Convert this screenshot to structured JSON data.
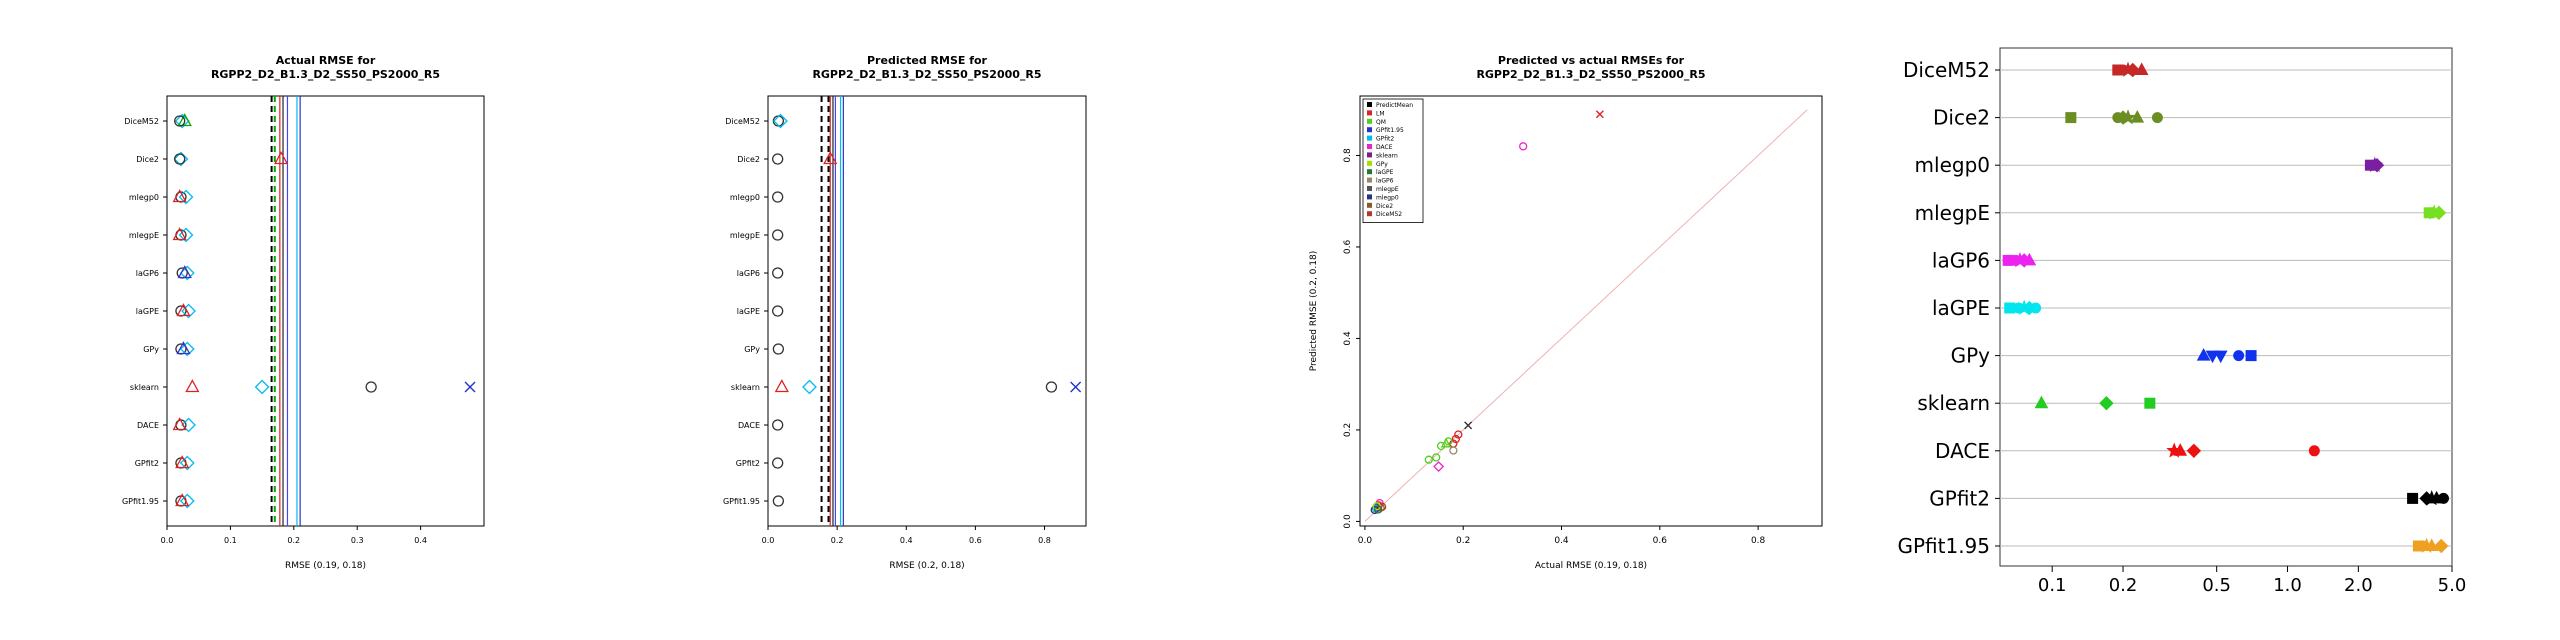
{
  "chart_data": [
    {
      "type": "scatter",
      "title": "Actual RMSE for",
      "subtitle": "RGPP2_D2_B1.3_D2_SS50_PS2000_R5",
      "xlabel": "RMSE (0.19, 0.18)",
      "ylabel": "",
      "xlim": [
        0,
        0.5
      ],
      "xticks": [
        "0.0",
        "0.1",
        "0.2",
        "0.3",
        "0.4"
      ],
      "xtick_values": [
        0,
        0.1,
        0.2,
        0.3,
        0.4
      ],
      "categories": [
        "DiceM52",
        "Dice2",
        "mlegp0",
        "mlegpE",
        "laGP6",
        "laGPE",
        "GPy",
        "sklearn",
        "DACE",
        "GPfit2",
        "GPfit1.95"
      ],
      "vlines": [
        {
          "x": 0.165,
          "color": "#000000",
          "dash": true
        },
        {
          "x": 0.17,
          "color": "#00aa00",
          "dash": true
        },
        {
          "x": 0.178,
          "color": "#dd2222",
          "dash": false
        },
        {
          "x": 0.183,
          "color": "#222222",
          "dash": false
        },
        {
          "x": 0.19,
          "color": "#4444ff",
          "dash": false
        },
        {
          "x": 0.205,
          "color": "#00bbee",
          "dash": false
        },
        {
          "x": 0.21,
          "color": "#2233cc",
          "dash": false
        }
      ],
      "points": [
        {
          "cat": "DiceM52",
          "x": 0.024,
          "marker": "diamond",
          "color": "#00bbee"
        },
        {
          "cat": "DiceM52",
          "x": 0.028,
          "marker": "triangle",
          "color": "#00aa00"
        },
        {
          "cat": "DiceM52",
          "x": 0.02,
          "marker": "circle",
          "color": "#333333"
        },
        {
          "cat": "Dice2",
          "x": 0.18,
          "marker": "triangle",
          "color": "#dd2222"
        },
        {
          "cat": "Dice2",
          "x": 0.022,
          "marker": "diamond",
          "color": "#00bbee"
        },
        {
          "cat": "Dice2",
          "x": 0.02,
          "marker": "circle",
          "color": "#333333"
        },
        {
          "cat": "mlegp0",
          "x": 0.022,
          "marker": "circle",
          "color": "#333333"
        },
        {
          "cat": "mlegp0",
          "x": 0.03,
          "marker": "diamond",
          "color": "#00bbee"
        },
        {
          "cat": "mlegp0",
          "x": 0.02,
          "marker": "triangle",
          "color": "#dd2222"
        },
        {
          "cat": "mlegpE",
          "x": 0.022,
          "marker": "circle",
          "color": "#333333"
        },
        {
          "cat": "mlegpE",
          "x": 0.03,
          "marker": "diamond",
          "color": "#00bbee"
        },
        {
          "cat": "mlegpE",
          "x": 0.02,
          "marker": "triangle",
          "color": "#dd2222"
        },
        {
          "cat": "laGP6",
          "x": 0.024,
          "marker": "circle",
          "color": "#333333"
        },
        {
          "cat": "laGP6",
          "x": 0.032,
          "marker": "diamond",
          "color": "#00bbee"
        },
        {
          "cat": "laGP6",
          "x": 0.028,
          "marker": "triangle",
          "color": "#3333cc"
        },
        {
          "cat": "laGPE",
          "x": 0.022,
          "marker": "circle",
          "color": "#333333"
        },
        {
          "cat": "laGPE",
          "x": 0.034,
          "marker": "diamond",
          "color": "#00bbee"
        },
        {
          "cat": "laGPE",
          "x": 0.026,
          "marker": "triangle",
          "color": "#dd2222"
        },
        {
          "cat": "GPy",
          "x": 0.022,
          "marker": "circle",
          "color": "#333333"
        },
        {
          "cat": "GPy",
          "x": 0.032,
          "marker": "diamond",
          "color": "#00bbee"
        },
        {
          "cat": "GPy",
          "x": 0.026,
          "marker": "triangle",
          "color": "#3333cc"
        },
        {
          "cat": "sklearn",
          "x": 0.04,
          "marker": "triangle",
          "color": "#dd2222"
        },
        {
          "cat": "sklearn",
          "x": 0.15,
          "marker": "diamond",
          "color": "#00bbee"
        },
        {
          "cat": "sklearn",
          "x": 0.322,
          "marker": "circle",
          "color": "#333333"
        },
        {
          "cat": "sklearn",
          "x": 0.478,
          "marker": "x",
          "color": "#2233cc"
        },
        {
          "cat": "DACE",
          "x": 0.022,
          "marker": "circle",
          "color": "#333333"
        },
        {
          "cat": "DACE",
          "x": 0.034,
          "marker": "diamond",
          "color": "#00bbee"
        },
        {
          "cat": "DACE",
          "x": 0.02,
          "marker": "triangle",
          "color": "#dd2222"
        },
        {
          "cat": "GPfit2",
          "x": 0.022,
          "marker": "circle",
          "color": "#333333"
        },
        {
          "cat": "GPfit2",
          "x": 0.032,
          "marker": "diamond",
          "color": "#00bbee"
        },
        {
          "cat": "GPfit2",
          "x": 0.024,
          "marker": "triangle",
          "color": "#dd2222"
        },
        {
          "cat": "GPfit1.95",
          "x": 0.022,
          "marker": "circle",
          "color": "#333333"
        },
        {
          "cat": "GPfit1.95",
          "x": 0.032,
          "marker": "diamond",
          "color": "#00bbee"
        },
        {
          "cat": "GPfit1.95",
          "x": 0.024,
          "marker": "triangle",
          "color": "#dd2222"
        }
      ]
    },
    {
      "type": "scatter",
      "title": "Predicted RMSE for",
      "subtitle": "RGPP2_D2_B1.3_D2_SS50_PS2000_R5",
      "xlabel": "RMSE (0.2, 0.18)",
      "ylabel": "",
      "xlim": [
        0,
        0.92
      ],
      "xticks": [
        "0.0",
        "0.2",
        "0.4",
        "0.6",
        "0.8"
      ],
      "xtick_values": [
        0,
        0.2,
        0.4,
        0.6,
        0.8
      ],
      "categories": [
        "DiceM52",
        "Dice2",
        "mlegp0",
        "mlegpE",
        "laGP6",
        "laGPE",
        "GPy",
        "sklearn",
        "DACE",
        "GPfit2",
        "GPfit1.95"
      ],
      "vlines": [
        {
          "x": 0.155,
          "color": "#000000",
          "dash": true
        },
        {
          "x": 0.175,
          "color": "#000000",
          "dash": true
        },
        {
          "x": 0.18,
          "color": "#dd2222",
          "dash": false
        },
        {
          "x": 0.188,
          "color": "#222222",
          "dash": false
        },
        {
          "x": 0.195,
          "color": "#4444ff",
          "dash": false
        },
        {
          "x": 0.21,
          "color": "#00bbee",
          "dash": false
        },
        {
          "x": 0.218,
          "color": "#2233cc",
          "dash": false
        }
      ],
      "points": [
        {
          "cat": "DiceM52",
          "x": 0.03,
          "marker": "circle",
          "color": "#333333"
        },
        {
          "cat": "DiceM52",
          "x": 0.036,
          "marker": "diamond",
          "color": "#00bbee"
        },
        {
          "cat": "Dice2",
          "x": 0.028,
          "marker": "circle",
          "color": "#333333"
        },
        {
          "cat": "Dice2",
          "x": 0.18,
          "marker": "triangle",
          "color": "#dd2222"
        },
        {
          "cat": "mlegp0",
          "x": 0.028,
          "marker": "circle",
          "color": "#333333"
        },
        {
          "cat": "mlegpE",
          "x": 0.028,
          "marker": "circle",
          "color": "#333333"
        },
        {
          "cat": "laGP6",
          "x": 0.028,
          "marker": "circle",
          "color": "#333333"
        },
        {
          "cat": "laGPE",
          "x": 0.028,
          "marker": "circle",
          "color": "#333333"
        },
        {
          "cat": "GPy",
          "x": 0.03,
          "marker": "circle",
          "color": "#333333"
        },
        {
          "cat": "sklearn",
          "x": 0.04,
          "marker": "triangle",
          "color": "#dd2222"
        },
        {
          "cat": "sklearn",
          "x": 0.12,
          "marker": "diamond",
          "color": "#00bbee"
        },
        {
          "cat": "sklearn",
          "x": 0.82,
          "marker": "circle",
          "color": "#333333"
        },
        {
          "cat": "sklearn",
          "x": 0.89,
          "marker": "x",
          "color": "#2233cc"
        },
        {
          "cat": "DACE",
          "x": 0.028,
          "marker": "circle",
          "color": "#333333"
        },
        {
          "cat": "GPfit2",
          "x": 0.028,
          "marker": "circle",
          "color": "#333333"
        },
        {
          "cat": "GPfit1.95",
          "x": 0.03,
          "marker": "circle",
          "color": "#333333"
        }
      ]
    },
    {
      "type": "scatter",
      "title": "Predicted vs actual RMSEs for",
      "subtitle": "RGPP2_D2_B1.3_D2_SS50_PS2000_R5",
      "xlabel": "Actual RMSE (0.19, 0.18)",
      "ylabel": "Predicted RMSE (0.2, 0.18)",
      "xlim": [
        -0.01,
        0.93
      ],
      "ylim": [
        -0.01,
        0.93
      ],
      "xticks": [
        "0.0",
        "0.2",
        "0.4",
        "0.6",
        "0.8"
      ],
      "yticks": [
        "0.0",
        "0.2",
        "0.4",
        "0.6",
        "0.8"
      ],
      "tick_values": [
        0,
        0.2,
        0.4,
        0.6,
        0.8
      ],
      "diagonal": true,
      "legend_position": "top-left",
      "legend": [
        {
          "label": "PredictMean",
          "color": "#000000"
        },
        {
          "label": "LM",
          "color": "#dd2222"
        },
        {
          "label": "QM",
          "color": "#55cc22"
        },
        {
          "label": "GPfit1.95",
          "color": "#2233cc"
        },
        {
          "label": "GPfit2",
          "color": "#00bbee"
        },
        {
          "label": "DACE",
          "color": "#ee22cc"
        },
        {
          "label": "sklearn",
          "color": "#7a1e8c"
        },
        {
          "label": "GPy",
          "color": "#aadd00"
        },
        {
          "label": "laGPE",
          "color": "#1f7a3a"
        },
        {
          "label": "laGP6",
          "color": "#998866"
        },
        {
          "label": "mlegpE",
          "color": "#555555"
        },
        {
          "label": "mlegp0",
          "color": "#223388"
        },
        {
          "label": "Dice2",
          "color": "#8b5a2b"
        },
        {
          "label": "DiceM52",
          "color": "#b33a2a"
        }
      ],
      "points": [
        {
          "x": 0.478,
          "y": 0.89,
          "marker": "x",
          "color": "#dd2222"
        },
        {
          "x": 0.322,
          "y": 0.82,
          "marker": "circle",
          "color": "#ee22cc"
        },
        {
          "x": 0.21,
          "y": 0.21,
          "marker": "x",
          "color": "#333333"
        },
        {
          "x": 0.19,
          "y": 0.19,
          "marker": "circle",
          "color": "#dd2222"
        },
        {
          "x": 0.185,
          "y": 0.18,
          "marker": "circle",
          "color": "#dd2222"
        },
        {
          "x": 0.18,
          "y": 0.17,
          "marker": "circle",
          "color": "#dd2222"
        },
        {
          "x": 0.17,
          "y": 0.175,
          "marker": "circle",
          "color": "#55cc22"
        },
        {
          "x": 0.165,
          "y": 0.17,
          "marker": "triangle",
          "color": "#55cc22"
        },
        {
          "x": 0.155,
          "y": 0.165,
          "marker": "circle",
          "color": "#55cc22"
        },
        {
          "x": 0.15,
          "y": 0.12,
          "marker": "diamond",
          "color": "#ee22cc"
        },
        {
          "x": 0.145,
          "y": 0.14,
          "marker": "circle",
          "color": "#55cc22"
        },
        {
          "x": 0.13,
          "y": 0.135,
          "marker": "circle",
          "color": "#55cc22"
        },
        {
          "x": 0.18,
          "y": 0.155,
          "marker": "circle",
          "color": "#998866"
        },
        {
          "x": 0.03,
          "y": 0.04,
          "marker": "circle",
          "color": "#ee22cc"
        },
        {
          "x": 0.028,
          "y": 0.035,
          "marker": "circle",
          "color": "#dd2222"
        },
        {
          "x": 0.025,
          "y": 0.03,
          "marker": "circle",
          "color": "#2233cc"
        },
        {
          "x": 0.022,
          "y": 0.028,
          "marker": "circle",
          "color": "#00bbee"
        },
        {
          "x": 0.032,
          "y": 0.03,
          "marker": "circle",
          "color": "#8b5a2b"
        },
        {
          "x": 0.02,
          "y": 0.025,
          "marker": "circle",
          "color": "#223388"
        },
        {
          "x": 0.035,
          "y": 0.032,
          "marker": "circle",
          "color": "#b33a2a"
        },
        {
          "x": 0.024,
          "y": 0.033,
          "marker": "circle",
          "color": "#aadd00"
        },
        {
          "x": 0.027,
          "y": 0.026,
          "marker": "circle",
          "color": "#1f7a3a"
        }
      ]
    },
    {
      "type": "scatter",
      "title": "",
      "xlabel": "",
      "ylabel": "",
      "xscale": "log",
      "xlim": [
        0.06,
        5.0
      ],
      "xticks": [
        "0.1",
        "0.2",
        "0.5",
        "1.0",
        "2.0",
        "5.0"
      ],
      "xtick_values": [
        0.1,
        0.2,
        0.5,
        1.0,
        2.0,
        5.0
      ],
      "categories": [
        "DiceM52",
        "Dice2",
        "mlegp0",
        "mlegpE",
        "laGP6",
        "laGPE",
        "GPy",
        "sklearn",
        "DACE",
        "GPfit2",
        "GPfit1.95"
      ],
      "category_colors": [
        "#c62828",
        "#6b8e23",
        "#7b1fa2",
        "#76e020",
        "#ee22ee",
        "#00e5ee",
        "#1133ee",
        "#22cc22",
        "#ee1111",
        "#000000",
        "#f0a020"
      ],
      "points": [
        {
          "cat": "DiceM52",
          "x": 0.19,
          "marker": "square"
        },
        {
          "cat": "DiceM52",
          "x": 0.2,
          "marker": "circle"
        },
        {
          "cat": "DiceM52",
          "x": 0.21,
          "marker": "star"
        },
        {
          "cat": "DiceM52",
          "x": 0.22,
          "marker": "diamond"
        },
        {
          "cat": "DiceM52",
          "x": 0.24,
          "marker": "triangle"
        },
        {
          "cat": "Dice2",
          "x": 0.12,
          "marker": "square"
        },
        {
          "cat": "Dice2",
          "x": 0.19,
          "marker": "circle"
        },
        {
          "cat": "Dice2",
          "x": 0.2,
          "marker": "diamond"
        },
        {
          "cat": "Dice2",
          "x": 0.21,
          "marker": "star"
        },
        {
          "cat": "Dice2",
          "x": 0.23,
          "marker": "triangle"
        },
        {
          "cat": "Dice2",
          "x": 0.28,
          "marker": "circle"
        },
        {
          "cat": "mlegp0",
          "x": 2.25,
          "marker": "square"
        },
        {
          "cat": "mlegp0",
          "x": 2.3,
          "marker": "circle"
        },
        {
          "cat": "mlegp0",
          "x": 2.35,
          "marker": "star"
        },
        {
          "cat": "mlegp0",
          "x": 2.4,
          "marker": "diamond"
        },
        {
          "cat": "mlegpE",
          "x": 4.0,
          "marker": "square"
        },
        {
          "cat": "mlegpE",
          "x": 4.1,
          "marker": "circle"
        },
        {
          "cat": "mlegpE",
          "x": 4.2,
          "marker": "star"
        },
        {
          "cat": "mlegpE",
          "x": 4.4,
          "marker": "diamond"
        },
        {
          "cat": "laGP6",
          "x": 0.065,
          "marker": "square"
        },
        {
          "cat": "laGP6",
          "x": 0.07,
          "marker": "circle"
        },
        {
          "cat": "laGP6",
          "x": 0.073,
          "marker": "star"
        },
        {
          "cat": "laGP6",
          "x": 0.076,
          "marker": "diamond"
        },
        {
          "cat": "laGP6",
          "x": 0.08,
          "marker": "triangle"
        },
        {
          "cat": "laGPE",
          "x": 0.066,
          "marker": "square"
        },
        {
          "cat": "laGPE",
          "x": 0.072,
          "marker": "circle"
        },
        {
          "cat": "laGPE",
          "x": 0.076,
          "marker": "star"
        },
        {
          "cat": "laGPE",
          "x": 0.08,
          "marker": "diamond"
        },
        {
          "cat": "laGPE",
          "x": 0.085,
          "marker": "circle"
        },
        {
          "cat": "GPy",
          "x": 0.44,
          "marker": "triangle"
        },
        {
          "cat": "GPy",
          "x": 0.48,
          "marker": "triangle-down"
        },
        {
          "cat": "GPy",
          "x": 0.52,
          "marker": "triangle-down"
        },
        {
          "cat": "GPy",
          "x": 0.62,
          "marker": "circle"
        },
        {
          "cat": "GPy",
          "x": 0.7,
          "marker": "square"
        },
        {
          "cat": "sklearn",
          "x": 0.09,
          "marker": "triangle"
        },
        {
          "cat": "sklearn",
          "x": 0.17,
          "marker": "diamond"
        },
        {
          "cat": "sklearn",
          "x": 0.26,
          "marker": "square"
        },
        {
          "cat": "DACE",
          "x": 0.33,
          "marker": "star"
        },
        {
          "cat": "DACE",
          "x": 0.35,
          "marker": "triangle"
        },
        {
          "cat": "DACE",
          "x": 0.4,
          "marker": "diamond"
        },
        {
          "cat": "DACE",
          "x": 1.3,
          "marker": "circle"
        },
        {
          "cat": "GPfit2",
          "x": 3.4,
          "marker": "square"
        },
        {
          "cat": "GPfit2",
          "x": 3.9,
          "marker": "diamond"
        },
        {
          "cat": "GPfit2",
          "x": 4.1,
          "marker": "star"
        },
        {
          "cat": "GPfit2",
          "x": 4.3,
          "marker": "triangle"
        },
        {
          "cat": "GPfit2",
          "x": 4.6,
          "marker": "circle"
        },
        {
          "cat": "GPfit1.95",
          "x": 3.6,
          "marker": "square"
        },
        {
          "cat": "GPfit1.95",
          "x": 3.75,
          "marker": "circle"
        },
        {
          "cat": "GPfit1.95",
          "x": 3.9,
          "marker": "star"
        },
        {
          "cat": "GPfit1.95",
          "x": 4.1,
          "marker": "triangle"
        },
        {
          "cat": "GPfit1.95",
          "x": 4.5,
          "marker": "diamond"
        }
      ]
    }
  ]
}
